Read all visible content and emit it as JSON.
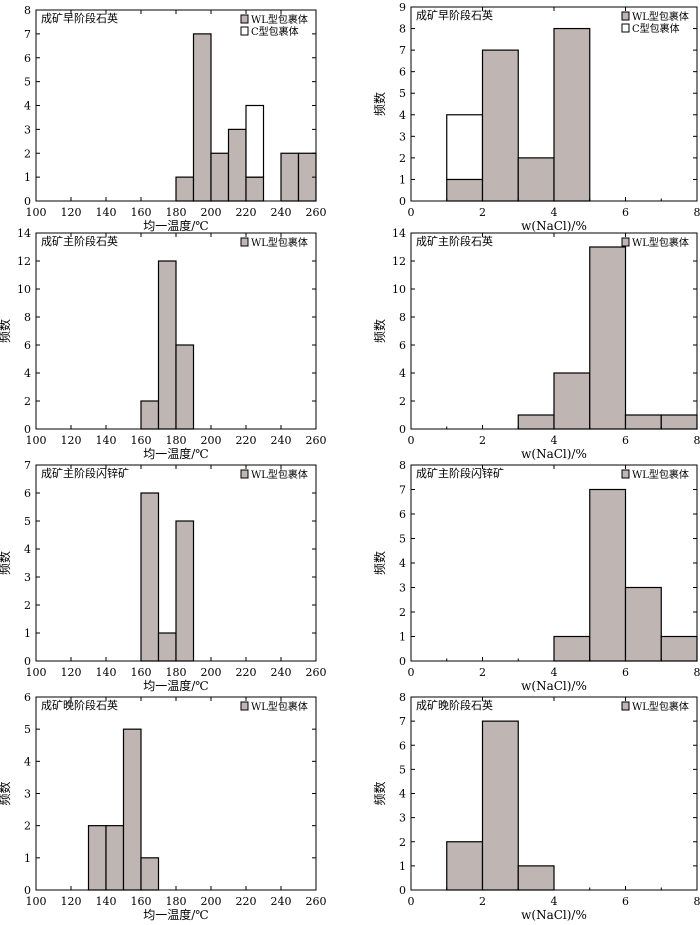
{
  "figure": {
    "bar_fill": "#bfb6b4",
    "stroke": "#000000",
    "background": "#ffffff"
  },
  "legend_labels": {
    "wl": "WL型包裹体",
    "c": "C型包裹体"
  },
  "chart_data": [
    {
      "type": "bar",
      "stacked": true,
      "title": "成矿早阶段石英",
      "xlabel": "均一温度/℃",
      "ylabel": "",
      "xlim": [
        100,
        260
      ],
      "ylim": [
        0,
        8
      ],
      "xticks": [
        100,
        120,
        140,
        160,
        180,
        200,
        220,
        240,
        260
      ],
      "yticks": [
        0,
        1,
        2,
        3,
        4,
        5,
        6,
        7,
        8
      ],
      "bins": [
        [
          180,
          190
        ],
        [
          190,
          200
        ],
        [
          200,
          210
        ],
        [
          210,
          220
        ],
        [
          220,
          230
        ],
        [
          240,
          250
        ],
        [
          250,
          260
        ]
      ],
      "series": [
        {
          "name": "WL型包裹体",
          "key": "wl",
          "values": [
            1,
            7,
            2,
            3,
            1,
            2,
            2
          ]
        },
        {
          "name": "C型包裹体",
          "key": "c",
          "values": [
            0,
            0,
            0,
            0,
            3,
            0,
            0
          ]
        }
      ]
    },
    {
      "type": "bar",
      "stacked": true,
      "title": "成矿早阶段石英",
      "xlabel": "w(NaCl)/%",
      "ylabel": "频数",
      "xlim": [
        0,
        8
      ],
      "ylim": [
        0,
        9
      ],
      "xticks": [
        0,
        2,
        4,
        6,
        8
      ],
      "yticks": [
        0,
        1,
        2,
        3,
        4,
        5,
        6,
        7,
        8,
        9
      ],
      "bins": [
        [
          1,
          2
        ],
        [
          2,
          3
        ],
        [
          3,
          4
        ],
        [
          4,
          5
        ]
      ],
      "series": [
        {
          "name": "WL型包裹体",
          "key": "wl",
          "values": [
            1,
            7,
            2,
            8
          ]
        },
        {
          "name": "C型包裹体",
          "key": "c",
          "values": [
            3,
            0,
            0,
            0
          ]
        }
      ]
    },
    {
      "type": "bar",
      "stacked": true,
      "title": "成矿主阶段石英",
      "xlabel": "均一温度/℃",
      "ylabel": "频数",
      "xlim": [
        100,
        260
      ],
      "ylim": [
        0,
        14
      ],
      "xticks": [
        100,
        120,
        140,
        160,
        180,
        200,
        220,
        240,
        260
      ],
      "yticks": [
        0,
        2,
        4,
        6,
        8,
        10,
        12,
        14
      ],
      "bins": [
        [
          160,
          170
        ],
        [
          170,
          180
        ],
        [
          180,
          190
        ]
      ],
      "series": [
        {
          "name": "WL型包裹体",
          "key": "wl",
          "values": [
            2,
            12,
            6
          ]
        }
      ]
    },
    {
      "type": "bar",
      "stacked": true,
      "title": "成矿主阶段石英",
      "xlabel": "w(NaCl)/%",
      "ylabel": "频数",
      "xlim": [
        0,
        8
      ],
      "ylim": [
        0,
        14
      ],
      "xticks": [
        0,
        2,
        4,
        6,
        8
      ],
      "yticks": [
        0,
        2,
        4,
        6,
        8,
        10,
        12,
        14
      ],
      "bins": [
        [
          3,
          4
        ],
        [
          4,
          5
        ],
        [
          5,
          6
        ],
        [
          6,
          7
        ],
        [
          7,
          8
        ]
      ],
      "series": [
        {
          "name": "WL型包裹体",
          "key": "wl",
          "values": [
            1,
            4,
            13,
            1,
            1
          ]
        }
      ]
    },
    {
      "type": "bar",
      "stacked": true,
      "title": "成矿主阶段闪锌矿",
      "xlabel": "均一温度/℃",
      "ylabel": "频数",
      "xlim": [
        100,
        260
      ],
      "ylim": [
        0,
        7
      ],
      "xticks": [
        100,
        120,
        140,
        160,
        180,
        200,
        220,
        240,
        260
      ],
      "yticks": [
        0,
        1,
        2,
        3,
        4,
        5,
        6,
        7
      ],
      "bins": [
        [
          160,
          170
        ],
        [
          170,
          180
        ],
        [
          180,
          190
        ]
      ],
      "series": [
        {
          "name": "WL型包裹体",
          "key": "wl",
          "values": [
            6,
            1,
            5
          ]
        }
      ]
    },
    {
      "type": "bar",
      "stacked": true,
      "title": "成矿主阶段闪锌矿",
      "xlabel": "w(NaCl)/%",
      "ylabel": "频数",
      "xlim": [
        0,
        8
      ],
      "ylim": [
        0,
        8
      ],
      "xticks": [
        0,
        2,
        4,
        6,
        8
      ],
      "yticks": [
        0,
        1,
        2,
        3,
        4,
        5,
        6,
        7,
        8
      ],
      "bins": [
        [
          4,
          5
        ],
        [
          5,
          6
        ],
        [
          6,
          7
        ],
        [
          7,
          8
        ]
      ],
      "series": [
        {
          "name": "WL型包裹体",
          "key": "wl",
          "values": [
            1,
            7,
            3,
            1
          ]
        }
      ]
    },
    {
      "type": "bar",
      "stacked": true,
      "title": "成矿晚阶段石英",
      "xlabel": "均一温度/℃",
      "ylabel": "频数",
      "xlim": [
        100,
        260
      ],
      "ylim": [
        0,
        6
      ],
      "xticks": [
        100,
        120,
        140,
        160,
        180,
        200,
        220,
        240,
        260
      ],
      "yticks": [
        0,
        1,
        2,
        3,
        4,
        5,
        6
      ],
      "bins": [
        [
          130,
          140
        ],
        [
          140,
          150
        ],
        [
          150,
          160
        ],
        [
          160,
          170
        ]
      ],
      "series": [
        {
          "name": "WL型包裹体",
          "key": "wl",
          "values": [
            2,
            2,
            5,
            1
          ]
        }
      ]
    },
    {
      "type": "bar",
      "stacked": true,
      "title": "成矿晚阶段石英",
      "xlabel": "w(NaCl)/%",
      "ylabel": "频数",
      "xlim": [
        0,
        8
      ],
      "ylim": [
        0,
        8
      ],
      "xticks": [
        0,
        2,
        4,
        6,
        8
      ],
      "yticks": [
        0,
        1,
        2,
        3,
        4,
        5,
        6,
        7,
        8
      ],
      "bins": [
        [
          1,
          2
        ],
        [
          2,
          3
        ],
        [
          3,
          4
        ]
      ],
      "series": [
        {
          "name": "WL型包裹体",
          "key": "wl",
          "values": [
            2,
            7,
            1
          ]
        }
      ]
    }
  ]
}
